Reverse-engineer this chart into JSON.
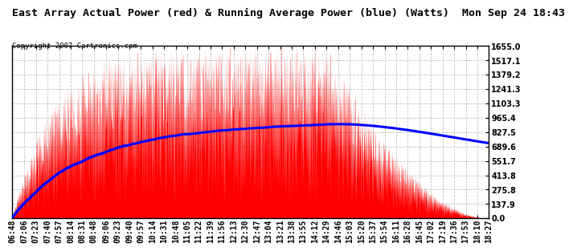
{
  "title": "East Array Actual Power (red) & Running Average Power (blue) (Watts)  Mon Sep 24 18:43",
  "copyright": "Copyright 2007 Cartronics.com",
  "ylabel_right_ticks": [
    0.0,
    137.9,
    275.8,
    413.8,
    551.7,
    689.6,
    827.5,
    965.4,
    1103.3,
    1241.3,
    1379.2,
    1517.1,
    1655.0
  ],
  "ymax": 1655.0,
  "ymin": 0.0,
  "background_color": "#ffffff",
  "plot_bg_color": "#ffffff",
  "grid_color": "#c0c0c0",
  "title_fontsize": 9.5,
  "copyright_fontsize": 6.5,
  "tick_fontsize": 7.0,
  "x_labels": [
    "06:48",
    "07:06",
    "07:23",
    "07:40",
    "07:57",
    "08:14",
    "08:31",
    "08:48",
    "09:06",
    "09:23",
    "09:40",
    "09:57",
    "10:14",
    "10:31",
    "10:48",
    "11:05",
    "11:22",
    "11:39",
    "11:56",
    "12:13",
    "12:30",
    "12:47",
    "13:04",
    "13:21",
    "13:38",
    "13:55",
    "14:12",
    "14:29",
    "14:46",
    "15:03",
    "15:20",
    "15:37",
    "15:54",
    "16:11",
    "16:28",
    "16:45",
    "17:02",
    "17:19",
    "17:36",
    "17:53",
    "18:10",
    "18:27"
  ]
}
